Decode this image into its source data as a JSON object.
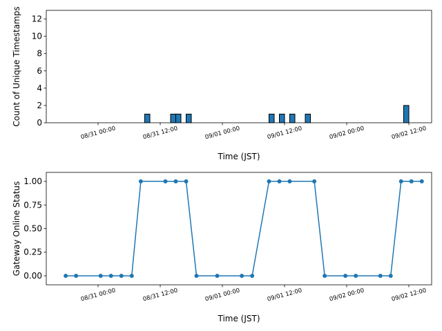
{
  "chart_data": [
    {
      "type": "bar",
      "color": "#1f77b4",
      "ylabel": "Count of Unique Timestamps",
      "xlabel": "Time (JST)",
      "x": [
        "08/31 09:00",
        "08/31 14:00",
        "08/31 15:00",
        "08/31 17:00",
        "09/01 09:00",
        "09/01 11:00",
        "09/01 13:00",
        "09/01 16:00",
        "09/02 11:00"
      ],
      "values": [
        1,
        1,
        1,
        1,
        1,
        1,
        1,
        1,
        2
      ],
      "xlim": [
        "08/30 14:00",
        "09/02 16:24"
      ],
      "xticks": [
        "08/31 00:00",
        "08/31 12:00",
        "09/01 00:00",
        "09/01 12:00",
        "09/02 00:00",
        "09/02 12:00"
      ],
      "ylim": [
        0,
        13
      ],
      "yticks": [
        0,
        2,
        4,
        6,
        8,
        10,
        12
      ]
    },
    {
      "type": "line",
      "color": "#1f77b4",
      "ylabel": "Gateway Online Status",
      "xlabel": "Time (JST)",
      "x": [
        "08/30 17:45",
        "08/30 19:45",
        "08/31 00:30",
        "08/31 02:30",
        "08/31 04:30",
        "08/31 06:30",
        "08/31 08:15",
        "08/31 13:00",
        "08/31 15:00",
        "08/31 17:00",
        "08/31 19:00",
        "08/31 23:00",
        "09/01 03:45",
        "09/01 05:45",
        "09/01 09:00",
        "09/01 11:00",
        "09/01 13:00",
        "09/01 17:45",
        "09/01 19:45",
        "09/01 23:45",
        "09/02 01:45",
        "09/02 06:30",
        "09/02 08:30",
        "09/02 10:30",
        "09/02 12:30",
        "09/02 14:30"
      ],
      "values": [
        0,
        0,
        0,
        0,
        0,
        0,
        1,
        1,
        1,
        1,
        0,
        0,
        0,
        0,
        1,
        1,
        1,
        1,
        0,
        0,
        0,
        0,
        0,
        1,
        1,
        1
      ],
      "xlim": [
        "08/30 14:00",
        "09/02 16:24"
      ],
      "xticks": [
        "08/31 00:00",
        "08/31 12:00",
        "09/01 00:00",
        "09/01 12:00",
        "09/02 00:00",
        "09/02 12:00"
      ],
      "ylim": [
        -0.095,
        1.095
      ],
      "yticks": [
        {
          "value": 0,
          "label": "0.00"
        },
        {
          "value": 0.25,
          "label": "0.25"
        },
        {
          "value": 0.5,
          "label": "0.50"
        },
        {
          "value": 0.75,
          "label": "0.75"
        },
        {
          "value": 1,
          "label": "1.00"
        }
      ]
    }
  ]
}
